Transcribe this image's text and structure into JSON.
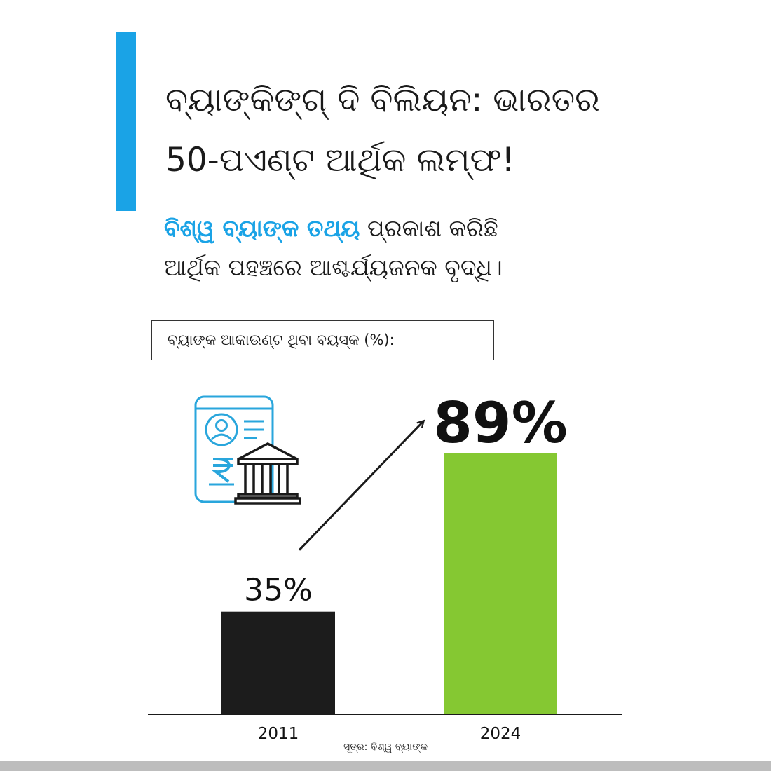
{
  "header": {
    "title_line1": "ବ୍ୟାଙ୍କିଙ୍ଗ୍ ଦି ବିଲିୟନ: ଭାରତର",
    "title_line2": "50-ପଏଣ୍ଟ ଆର୍ଥିକ ଲମ୍ଫ!",
    "subtitle_highlight": "ବିଶ୍ୱ ବ୍ୟାଙ୍କ ତଥ୍ୟ",
    "subtitle_rest": " ପ୍ରକାଶ କରିଛି",
    "subtitle_line2": "ଆର୍ଥିକ ପହଞ୍ଚରେ ଆଶ୍ଚର୍ଯ୍ୟଜନକ ବୃଦ୍ଧି।"
  },
  "chart_label": "ବ୍ୟାଙ୍କ ଆକାଉଣ୍ଟ ଥିବା ବୟସ୍କ (%):",
  "icon": "bank-account-document-icon",
  "source": "ସୂତ୍ର: ବିଶ୍ୱ ବ୍ୟାଙ୍କ",
  "colors": {
    "accent": "#1aa3e6",
    "bar_2011": "#1c1c1c",
    "bar_2024": "#85c832",
    "icon": "#29a6dc"
  },
  "chart_data": {
    "type": "bar",
    "categories": [
      "2011",
      "2024"
    ],
    "values": [
      35,
      89
    ],
    "data_labels": [
      "35%",
      "89%"
    ],
    "ylim": [
      0,
      100
    ],
    "grid": false,
    "legend": "none",
    "annotation": "arrow from 2011 bar to 2024 bar"
  }
}
